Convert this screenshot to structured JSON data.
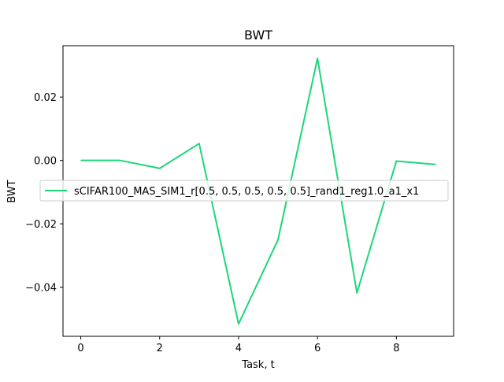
{
  "chart_data": {
    "type": "line",
    "title": "BWT",
    "xlabel": "Task, t",
    "ylabel": "BWT",
    "xlim": [
      -0.45,
      9.45
    ],
    "ylim": [
      -0.0555,
      0.0362
    ],
    "x_ticks": [
      0,
      2,
      4,
      6,
      8
    ],
    "x_tick_labels": [
      "0",
      "2",
      "4",
      "6",
      "8"
    ],
    "y_ticks": [
      -0.04,
      -0.02,
      0.0,
      0.02
    ],
    "y_tick_labels": [
      "−0.04",
      "−0.02",
      "0.00",
      "0.02"
    ],
    "grid": false,
    "legend_position": "center-left",
    "series": [
      {
        "name": "sCIFAR100_MAS_SIM1_r[0.5, 0.5, 0.5, 0.5, 0.5]_rand1_reg1.0_a1_x1",
        "color": "#1dd67a",
        "x": [
          0,
          1,
          2,
          3,
          4,
          5,
          6,
          7,
          8,
          9
        ],
        "y": [
          0.0,
          0.0,
          -0.0025,
          0.0053,
          -0.0516,
          -0.025,
          0.0322,
          -0.0418,
          -0.0002,
          -0.0013
        ]
      }
    ]
  }
}
